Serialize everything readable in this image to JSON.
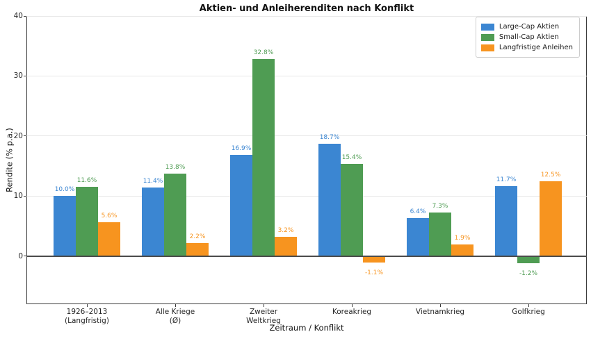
{
  "chart_data": {
    "type": "bar",
    "title": "Aktien- und Anleiherenditen nach Konflikt",
    "xlabel": "Zeitraum / Konflikt",
    "ylabel": "Rendite (% p.a.)",
    "categories": [
      {
        "lines": [
          "1926–2013",
          "(Langfristig)"
        ]
      },
      {
        "lines": [
          "Alle Kriege",
          "(Ø)"
        ]
      },
      {
        "lines": [
          "Zweiter",
          "Weltkrieg"
        ]
      },
      {
        "lines": [
          "Koreakrieg"
        ]
      },
      {
        "lines": [
          "Vietnamkrieg"
        ]
      },
      {
        "lines": [
          "Golfkrieg"
        ]
      }
    ],
    "series": [
      {
        "name": "Large-Cap Aktien",
        "color": "#3b86d2",
        "values": [
          10.0,
          11.4,
          16.9,
          18.7,
          6.4,
          11.7
        ],
        "labels": [
          "10.0%",
          "11.4%",
          "16.9%",
          "18.7%",
          "6.4%",
          "11.7%"
        ]
      },
      {
        "name": "Small-Cap Aktien",
        "color": "#4f9c53",
        "values": [
          11.6,
          13.8,
          32.8,
          15.4,
          7.3,
          -1.2
        ],
        "labels": [
          "11.6%",
          "13.8%",
          "32.8%",
          "15.4%",
          "7.3%",
          "-1.2%"
        ]
      },
      {
        "name": "Langfristige Anleihen",
        "color": "#f7941f",
        "values": [
          5.6,
          2.2,
          3.2,
          -1.1,
          1.9,
          12.5
        ],
        "labels": [
          "5.6%",
          "2.2%",
          "3.2%",
          "-1.1%",
          "1.9%",
          "12.5%"
        ]
      }
    ],
    "yticks": [
      0,
      10,
      20,
      30,
      40
    ],
    "ytick_labels": [
      "0",
      "10",
      "20",
      "30",
      "40"
    ],
    "ylim": [
      -8,
      40
    ],
    "grid": true,
    "zero_line": true,
    "legend_position": "top-right"
  },
  "colors": {
    "grid": "#e7e7e7",
    "spine": "#3c3c3c",
    "zero_line": "#4b4b4b",
    "legend_border": "#cccccc"
  }
}
